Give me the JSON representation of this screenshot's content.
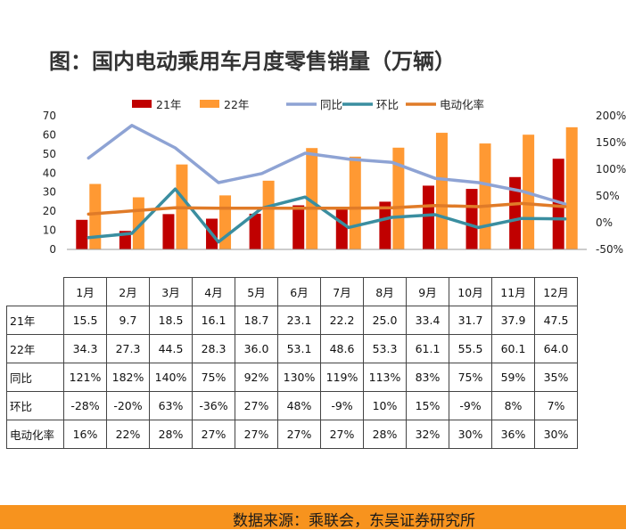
{
  "title": "图：国内电动乘用车月度零售销量（万辆）",
  "source": "数据来源：乘联会，东吴证券研究所",
  "colors": {
    "s21": "#c00000",
    "s22": "#ff9933",
    "yoy": "#8ea3d4",
    "mom": "#3a8ea0",
    "pen": "#e07b28",
    "footer": "#f7931e"
  },
  "chart_data": {
    "type": "bar",
    "categories": [
      "1月",
      "2月",
      "3月",
      "4月",
      "5月",
      "6月",
      "7月",
      "8月",
      "9月",
      "10月",
      "11月",
      "12月"
    ],
    "left_axis": {
      "ylim": [
        0,
        70
      ],
      "ticks": [
        "0",
        "10",
        "20",
        "30",
        "40",
        "50",
        "60",
        "70"
      ]
    },
    "right_axis": {
      "ylim": [
        -50,
        200
      ],
      "ticks": [
        "-50%",
        "0%",
        "50%",
        "100%",
        "150%",
        "200%"
      ]
    },
    "legend": {
      "placement": "top",
      "items": [
        "21年",
        "22年",
        "同比",
        "环比",
        "电动化率"
      ]
    },
    "series": [
      {
        "name": "21年",
        "type": "bar",
        "axis": "left",
        "values": [
          15.5,
          9.7,
          18.5,
          16.1,
          18.7,
          23.1,
          22.2,
          25.0,
          33.4,
          31.7,
          37.9,
          47.5
        ],
        "labels": [
          "15.5",
          "9.7",
          "18.5",
          "16.1",
          "18.7",
          "23.1",
          "22.2",
          "25.0",
          "33.4",
          "31.7",
          "37.9",
          "47.5"
        ]
      },
      {
        "name": "22年",
        "type": "bar",
        "axis": "left",
        "values": [
          34.3,
          27.3,
          44.5,
          28.3,
          36.0,
          53.1,
          48.6,
          53.3,
          61.1,
          55.5,
          60.1,
          64.0
        ],
        "labels": [
          "34.3",
          "27.3",
          "44.5",
          "28.3",
          "36.0",
          "53.1",
          "48.6",
          "53.3",
          "61.1",
          "55.5",
          "60.1",
          "64.0"
        ]
      },
      {
        "name": "同比",
        "type": "line",
        "axis": "right",
        "values": [
          121,
          182,
          140,
          75,
          92,
          130,
          119,
          113,
          83,
          75,
          59,
          35
        ],
        "labels": [
          "121%",
          "182%",
          "140%",
          "75%",
          "92%",
          "130%",
          "119%",
          "113%",
          "83%",
          "75%",
          "59%",
          "35%"
        ]
      },
      {
        "name": "环比",
        "type": "line",
        "axis": "right",
        "values": [
          -28,
          -20,
          63,
          -36,
          27,
          48,
          -9,
          10,
          15,
          -9,
          8,
          7
        ],
        "labels": [
          "-28%",
          "-20%",
          "63%",
          "-36%",
          "27%",
          "48%",
          "-9%",
          "10%",
          "15%",
          "-9%",
          "8%",
          "7%"
        ]
      },
      {
        "name": "电动化率",
        "type": "line",
        "axis": "right",
        "values": [
          16,
          22,
          28,
          27,
          27,
          27,
          27,
          28,
          32,
          30,
          36,
          30
        ],
        "labels": [
          "16%",
          "22%",
          "28%",
          "27%",
          "27%",
          "27%",
          "27%",
          "28%",
          "32%",
          "30%",
          "36%",
          "30%"
        ]
      }
    ]
  }
}
